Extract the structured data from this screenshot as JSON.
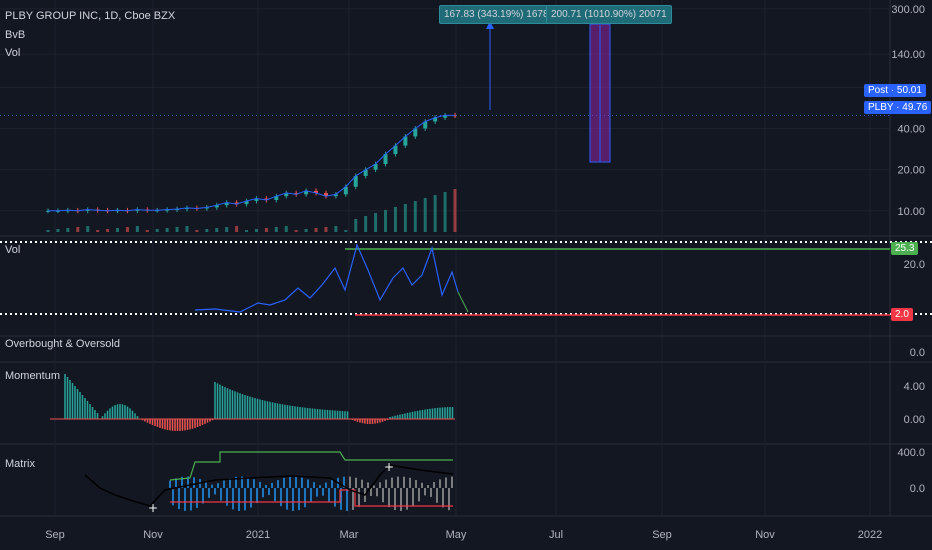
{
  "header": {
    "symbol_line": "PLBY GROUP INC, 1D, Cboe BZX",
    "indicator_1": "BvB",
    "indicator_2": "Vol"
  },
  "price_tags": {
    "post": {
      "label": "Post",
      "value": "50.01",
      "color": "#2962ff"
    },
    "last": {
      "label": "PLBY",
      "value": "49.76",
      "color": "#2962ff"
    }
  },
  "annotations": [
    {
      "text": "167.83 (343.19%) 16783"
    },
    {
      "text": "200.71 (1010.90%) 20071"
    }
  ],
  "panes": {
    "vol": {
      "title": "Vol",
      "high_tag": "25.3",
      "low_tag": "2.0",
      "high_color": "#4caf50",
      "low_color": "#f23645"
    },
    "obos": {
      "title": "Overbought & Oversold"
    },
    "momentum": {
      "title": "Momentum"
    },
    "matrix": {
      "title": "Matrix"
    }
  },
  "colors": {
    "up": "#26a69a",
    "down": "#ef5350",
    "line": "#2962ff",
    "momentum_up": "#26a69a",
    "momentum_down": "#ef5350",
    "purple": "#9c27b0"
  },
  "chart_data": [
    {
      "type": "candlestick",
      "pane": "price",
      "scale": "log",
      "yticks": [
        "300.00",
        "140.00",
        "80.00",
        "40.00",
        "20.00",
        "10.00"
      ],
      "ylim": [
        7,
        320
      ],
      "xticks": [
        "Sep",
        "Nov",
        "2021",
        "Mar",
        "May",
        "Jul",
        "Sep",
        "Nov",
        "2022"
      ],
      "close_series_approx": [
        10.0,
        10.0,
        10.1,
        10.0,
        10.2,
        10.1,
        10.0,
        10.1,
        10.0,
        10.2,
        10.1,
        10.1,
        10.2,
        10.3,
        10.5,
        10.4,
        10.6,
        11.0,
        11.5,
        11.2,
        11.8,
        12.3,
        12.0,
        12.8,
        13.5,
        13.2,
        14.0,
        13.5,
        12.8,
        13.2,
        15.0,
        18.0,
        20.0,
        22.0,
        26.0,
        30.0,
        35.0,
        40.0,
        45.0,
        48.0,
        50.0,
        49.76
      ],
      "annotation_targets": [
        167.83,
        200.71
      ]
    },
    {
      "type": "line",
      "pane": "vol",
      "yticks": [
        "20.0"
      ],
      "levels": [
        25.3,
        2.0
      ]
    },
    {
      "type": "bar",
      "pane": "momentum",
      "yticks": [
        "4.00",
        "0.00"
      ]
    },
    {
      "type": "line",
      "pane": "matrix",
      "yticks": [
        "400.0",
        "0.0"
      ]
    },
    {
      "type": "table",
      "pane": "obos",
      "yticks": [
        "0.0"
      ]
    }
  ]
}
